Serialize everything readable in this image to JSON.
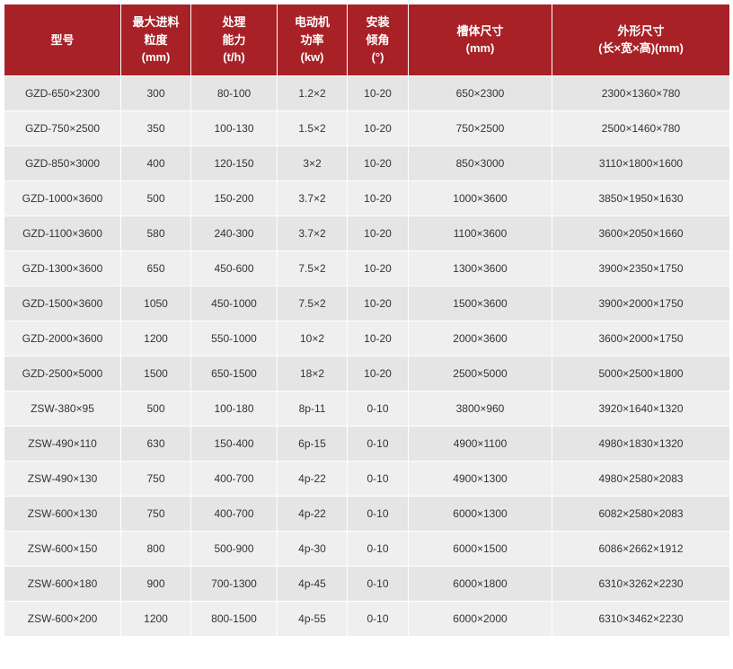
{
  "table": {
    "header_bg": "#a72126",
    "header_fg": "#ffffff",
    "row_bg_odd": "#e5e5e5",
    "row_bg_even": "#efefef",
    "cell_fg": "#333333",
    "border_color": "#ffffff",
    "header_fontsize": 13,
    "cell_fontsize": 12,
    "columns": [
      {
        "lines": [
          "型号"
        ]
      },
      {
        "lines": [
          "最大进料",
          "粒度",
          "(mm)"
        ]
      },
      {
        "lines": [
          "处理",
          "能力",
          "(t/h)"
        ]
      },
      {
        "lines": [
          "电动机",
          "功率",
          "(kw)"
        ]
      },
      {
        "lines": [
          "安装",
          "倾角",
          "(°)"
        ]
      },
      {
        "lines": [
          "槽体尺寸",
          "(mm)"
        ]
      },
      {
        "lines": [
          "外形尺寸",
          "(长×宽×高)(mm)"
        ]
      }
    ],
    "rows": [
      [
        "GZD-650×2300",
        "300",
        "80-100",
        "1.2×2",
        "10-20",
        "650×2300",
        "2300×1360×780"
      ],
      [
        "GZD-750×2500",
        "350",
        "100-130",
        "1.5×2",
        "10-20",
        "750×2500",
        "2500×1460×780"
      ],
      [
        "GZD-850×3000",
        "400",
        "120-150",
        "3×2",
        "10-20",
        "850×3000",
        "3110×1800×1600"
      ],
      [
        "GZD-1000×3600",
        "500",
        "150-200",
        "3.7×2",
        "10-20",
        "1000×3600",
        "3850×1950×1630"
      ],
      [
        "GZD-1100×3600",
        "580",
        "240-300",
        "3.7×2",
        "10-20",
        "1100×3600",
        "3600×2050×1660"
      ],
      [
        "GZD-1300×3600",
        "650",
        "450-600",
        "7.5×2",
        "10-20",
        "1300×3600",
        "3900×2350×1750"
      ],
      [
        "GZD-1500×3600",
        "1050",
        "450-1000",
        "7.5×2",
        "10-20",
        "1500×3600",
        "3900×2000×1750"
      ],
      [
        "GZD-2000×3600",
        "1200",
        "550-1000",
        "10×2",
        "10-20",
        "2000×3600",
        "3600×2000×1750"
      ],
      [
        "GZD-2500×5000",
        "1500",
        "650-1500",
        "18×2",
        "10-20",
        "2500×5000",
        "5000×2500×1800"
      ],
      [
        "ZSW-380×95",
        "500",
        "100-180",
        "8p-11",
        "0-10",
        "3800×960",
        "3920×1640×1320"
      ],
      [
        "ZSW-490×110",
        "630",
        "150-400",
        "6p-15",
        "0-10",
        "4900×1100",
        "4980×1830×1320"
      ],
      [
        "ZSW-490×130",
        "750",
        "400-700",
        "4p-22",
        "0-10",
        "4900×1300",
        "4980×2580×2083"
      ],
      [
        "ZSW-600×130",
        "750",
        "400-700",
        "4p-22",
        "0-10",
        "6000×1300",
        "6082×2580×2083"
      ],
      [
        "ZSW-600×150",
        "800",
        "500-900",
        "4p-30",
        "0-10",
        "6000×1500",
        "6086×2662×1912"
      ],
      [
        "ZSW-600×180",
        "900",
        "700-1300",
        "4p-45",
        "0-10",
        "6000×1800",
        "6310×3262×2230"
      ],
      [
        "ZSW-600×200",
        "1200",
        "800-1500",
        "4p-55",
        "0-10",
        "6000×2000",
        "6310×3462×2230"
      ]
    ]
  }
}
